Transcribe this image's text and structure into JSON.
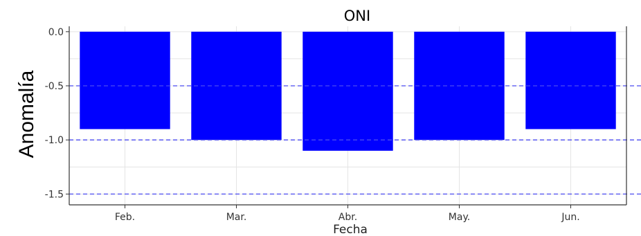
{
  "chart_data": {
    "type": "bar",
    "title": "ONI",
    "xlabel": "Fecha",
    "ylabel": "Anomalía",
    "categories": [
      "Feb.",
      "Mar.",
      "Abr.",
      "May.",
      "Jun."
    ],
    "values": [
      -0.9,
      -1.0,
      -1.1,
      -1.0,
      -0.9
    ],
    "ylim": [
      -1.6,
      0.05
    ],
    "yticks": [
      0.0,
      -0.5,
      -1.0,
      -1.5
    ],
    "ytick_labels": [
      "0.0",
      "-0.5",
      "-1.0",
      "-1.5"
    ],
    "reference_lines": [
      -0.5,
      -1.0,
      -1.5
    ],
    "grid": true,
    "legend": "none",
    "colors": {
      "bar": "#0000ff",
      "reference_line": "#4a4af0",
      "grid": "#e4e4e4",
      "panel_border": "#333333"
    }
  }
}
